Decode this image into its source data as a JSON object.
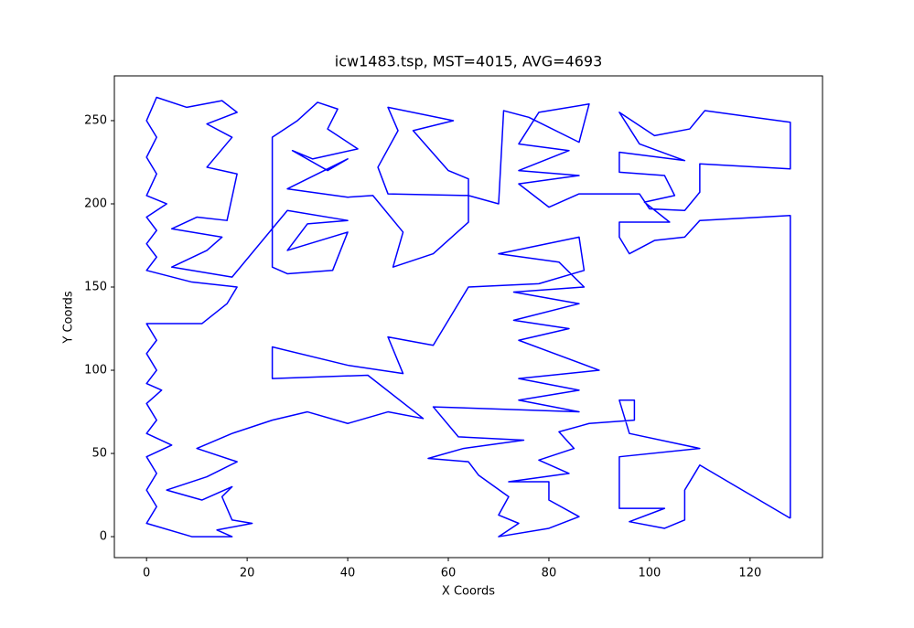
{
  "chart_data": {
    "type": "line",
    "title": "icw1483.tsp, MST=4015, AVG=4693",
    "x_label": "X Coords",
    "y_label": "Y Coords",
    "xlim": [
      -6.4,
      134.4
    ],
    "ylim": [
      -12.6,
      276.9
    ],
    "xticks": [
      0,
      20,
      40,
      60,
      80,
      100,
      120
    ],
    "yticks": [
      0,
      50,
      100,
      150,
      200,
      250
    ],
    "x": [
      128,
      128,
      110,
      107,
      101,
      96,
      94,
      94,
      104,
      99,
      105,
      103,
      94,
      94,
      107,
      98,
      94,
      101,
      108,
      111,
      128,
      128,
      110,
      110,
      107,
      100,
      98,
      86,
      80,
      74,
      86,
      74,
      84,
      74,
      78,
      88,
      86,
      76,
      71,
      70,
      64,
      48,
      46,
      50,
      48,
      61,
      53,
      60,
      64,
      64,
      57,
      49,
      51,
      45,
      40,
      28,
      40,
      36,
      29,
      33,
      42,
      36,
      38,
      34,
      30,
      25,
      25,
      28,
      37,
      40,
      28,
      32,
      40,
      28,
      17,
      5,
      12,
      15,
      5,
      10,
      16,
      18,
      12,
      17,
      12,
      18,
      15,
      8,
      2,
      0,
      2,
      0,
      2,
      0,
      4,
      0,
      2,
      0,
      2,
      0,
      9,
      18,
      16,
      11,
      0,
      2,
      0,
      2,
      0,
      3,
      0,
      2,
      0,
      5,
      0,
      2,
      0,
      2,
      0,
      9,
      17,
      14,
      21,
      17,
      15,
      17,
      11,
      4,
      12,
      18,
      10,
      17,
      25,
      32,
      40,
      48,
      55,
      44,
      25,
      25,
      40,
      51,
      48,
      57,
      64,
      78,
      87,
      86,
      70,
      82,
      87,
      73,
      86,
      73,
      84,
      74,
      90,
      74,
      86,
      74,
      86,
      57,
      62,
      75,
      63,
      56,
      64,
      66,
      72,
      70,
      74,
      70,
      80,
      86,
      80,
      80,
      72,
      84,
      78,
      85,
      82,
      88,
      97,
      97,
      94,
      96,
      110,
      94,
      94,
      103,
      96,
      103,
      107,
      107,
      110,
      128
    ],
    "series": [
      {
        "color": "#0000ff",
        "values": [
          11,
          193,
          190,
          180,
          178,
          170,
          180,
          189,
          189,
          201,
          205,
          217,
          219,
          231,
          226,
          236,
          255,
          241,
          245,
          256,
          249,
          221,
          224,
          207,
          196,
          197,
          206,
          206,
          198,
          212,
          217,
          220,
          232,
          236,
          255,
          260,
          237,
          252,
          256,
          200,
          205,
          206,
          222,
          244,
          258,
          250,
          244,
          220,
          215,
          189,
          170,
          162,
          183,
          205,
          204,
          209,
          227,
          220,
          232,
          227,
          233,
          245,
          257,
          261,
          250,
          240,
          162,
          158,
          160,
          183,
          172,
          188,
          190,
          196,
          156,
          162,
          172,
          180,
          185,
          192,
          190,
          218,
          222,
          240,
          248,
          255,
          262,
          258,
          264,
          250,
          240,
          228,
          218,
          205,
          200,
          192,
          184,
          176,
          168,
          160,
          153,
          150,
          140,
          128,
          128,
          118,
          110,
          100,
          92,
          88,
          80,
          70,
          62,
          55,
          48,
          38,
          28,
          18,
          8,
          0,
          0,
          4,
          8,
          10,
          24,
          30,
          22,
          28,
          36,
          45,
          53,
          62,
          70,
          75,
          68,
          75,
          71,
          97,
          95,
          114,
          103,
          98,
          120,
          115,
          150,
          152,
          160,
          180,
          170,
          165,
          150,
          147,
          140,
          130,
          125,
          118,
          100,
          95,
          88,
          82,
          75,
          78,
          60,
          58,
          53,
          47,
          45,
          37,
          24,
          13,
          8,
          0,
          5,
          12,
          22,
          33,
          33,
          38,
          46,
          53,
          63,
          68,
          70,
          82,
          82,
          62,
          53,
          48,
          17,
          17,
          9,
          5,
          10,
          28,
          43,
          11
        ]
      }
    ]
  }
}
